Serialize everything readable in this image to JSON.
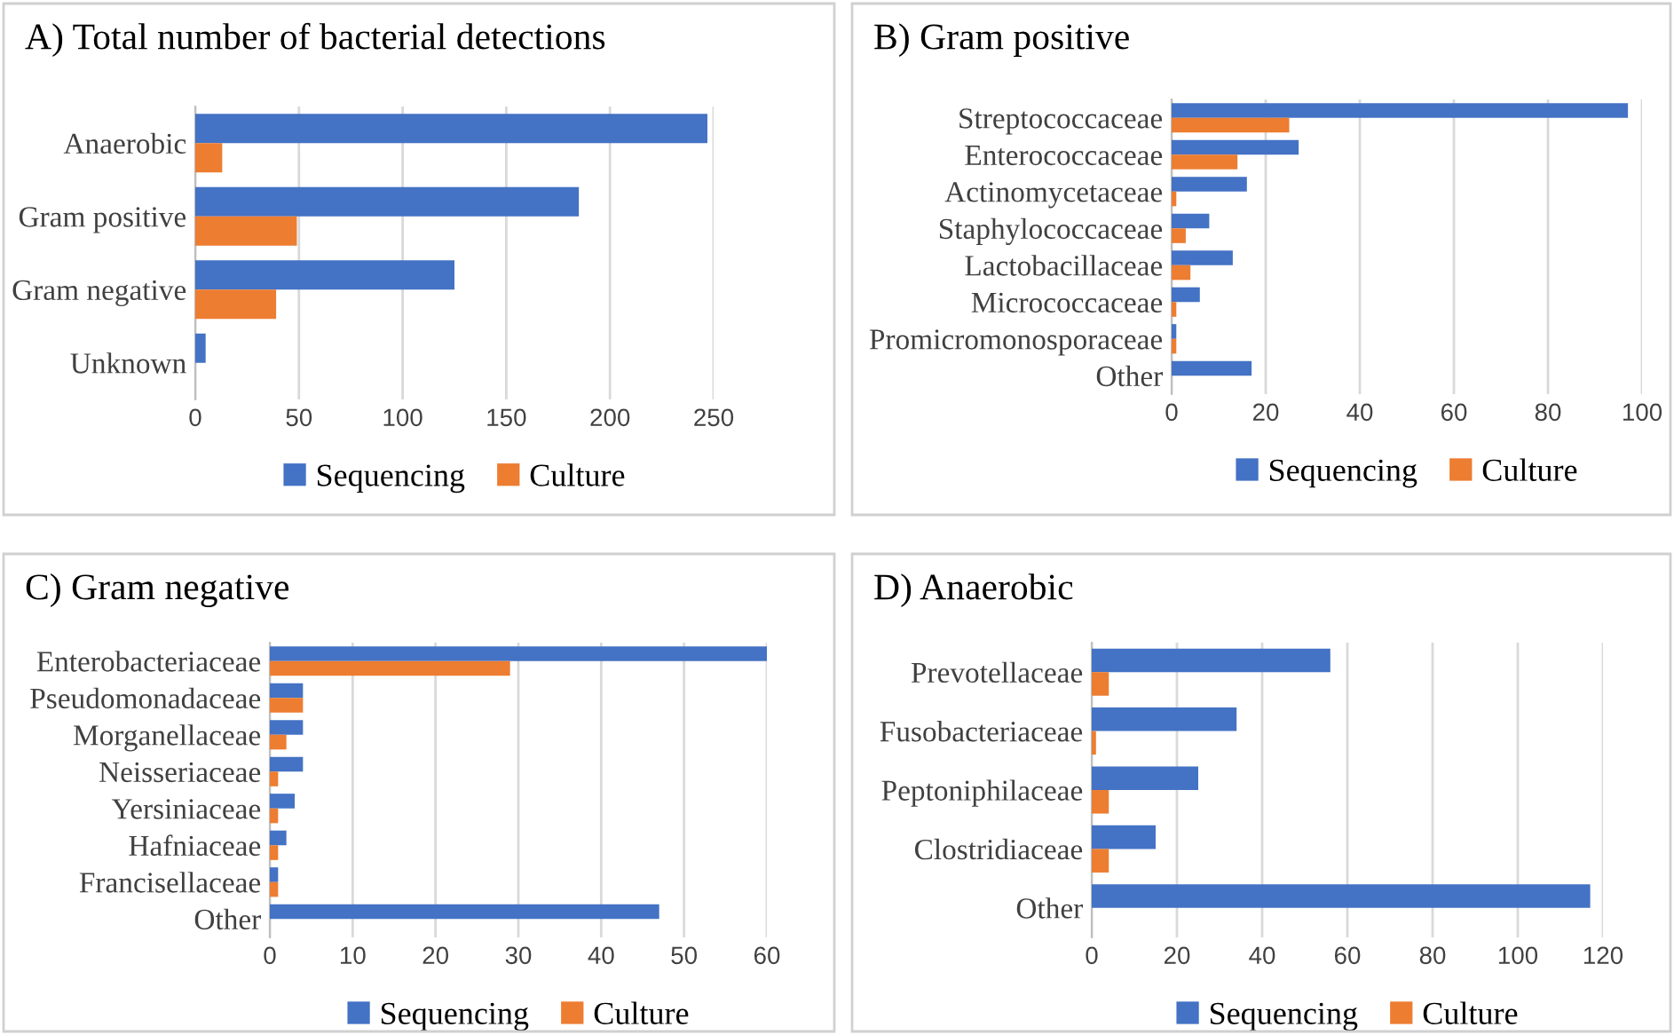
{
  "chart_data": [
    {
      "type": "bar",
      "orientation": "horizontal",
      "title": "A) Total number of bacterial detections",
      "categories": [
        "Anaerobic",
        "Gram positive",
        "Gram negative",
        "Unknown"
      ],
      "series": [
        {
          "name": "Sequencing",
          "color": "#4472c4",
          "values": [
            247,
            185,
            125,
            5
          ]
        },
        {
          "name": "Culture",
          "color": "#ed7d31",
          "values": [
            13,
            49,
            39,
            0
          ]
        }
      ],
      "xlim": [
        0,
        250
      ],
      "xticks": [
        0,
        50,
        100,
        150,
        200,
        250
      ],
      "grid": "x",
      "legend": "bottom"
    },
    {
      "type": "bar",
      "orientation": "horizontal",
      "title": "B) Gram positive",
      "categories": [
        "Streptococcaceae",
        "Enterococcaceae",
        "Actinomycetaceae",
        "Staphylococcaceae",
        "Lactobacillaceae",
        "Micrococcaceae",
        "Promicromonosporaceae",
        "Other"
      ],
      "series": [
        {
          "name": "Sequencing",
          "color": "#4472c4",
          "values": [
            97,
            27,
            16,
            8,
            13,
            6,
            1,
            17
          ]
        },
        {
          "name": "Culture",
          "color": "#ed7d31",
          "values": [
            25,
            14,
            1,
            3,
            4,
            1,
            1,
            0
          ]
        }
      ],
      "xlim": [
        0,
        100
      ],
      "xticks": [
        0,
        20,
        40,
        60,
        80,
        100
      ],
      "grid": "x",
      "legend": "bottom"
    },
    {
      "type": "bar",
      "orientation": "horizontal",
      "title": "C) Gram negative",
      "categories": [
        "Enterobacteriaceae",
        "Pseudomonadaceae",
        "Morganellaceae",
        "Neisseriaceae",
        "Yersiniaceae",
        "Hafniaceae",
        "Francisellaceae",
        "Other"
      ],
      "series": [
        {
          "name": "Sequencing",
          "color": "#4472c4",
          "values": [
            60,
            4,
            4,
            4,
            3,
            2,
            1,
            47
          ]
        },
        {
          "name": "Culture",
          "color": "#ed7d31",
          "values": [
            29,
            4,
            2,
            1,
            1,
            1,
            1,
            0
          ]
        }
      ],
      "xlim": [
        0,
        60
      ],
      "xticks": [
        0,
        10,
        20,
        30,
        40,
        50,
        60
      ],
      "grid": "x",
      "legend": "bottom"
    },
    {
      "type": "bar",
      "orientation": "horizontal",
      "title": "D) Anaerobic",
      "categories": [
        "Prevotellaceae",
        "Fusobacteriaceae",
        "Peptoniphilaceae",
        "Clostridiaceae",
        "Other"
      ],
      "series": [
        {
          "name": "Sequencing",
          "color": "#4472c4",
          "values": [
            56,
            34,
            25,
            15,
            117
          ]
        },
        {
          "name": "Culture",
          "color": "#ed7d31",
          "values": [
            4,
            1,
            4,
            4,
            0
          ]
        }
      ],
      "xlim": [
        0,
        120
      ],
      "xticks": [
        0,
        20,
        40,
        60,
        80,
        100,
        120
      ],
      "grid": "x",
      "legend": "bottom"
    }
  ]
}
